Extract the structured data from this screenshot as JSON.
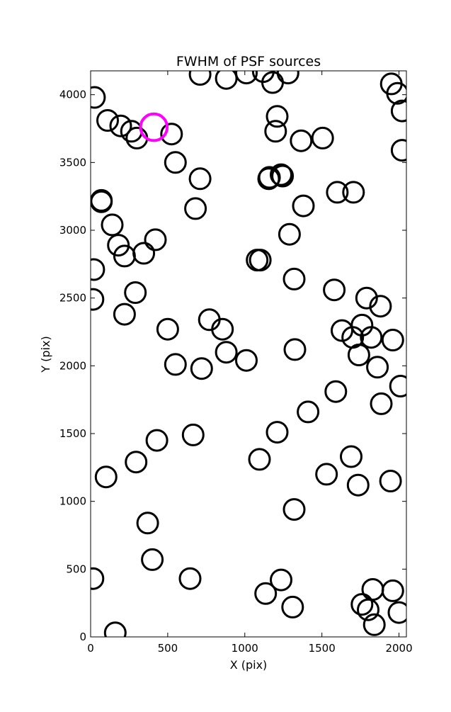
{
  "chart_data": {
    "type": "scatter",
    "title": "FWHM of PSF sources",
    "xlabel": "X (pix)",
    "ylabel": "Y (pix)",
    "xlim": [
      0,
      2048
    ],
    "ylim": [
      0,
      4176
    ],
    "xticks": [
      "0",
      "500",
      "1000",
      "1500",
      "2000"
    ],
    "yticks": [
      "0",
      "500",
      "1000",
      "1500",
      "2000",
      "2500",
      "3000",
      "3500",
      "4000"
    ],
    "xtick_values": [
      0,
      500,
      1000,
      1500,
      2000
    ],
    "ytick_values": [
      0,
      500,
      1000,
      1500,
      2000,
      2500,
      3000,
      3500,
      4000
    ],
    "grid": false,
    "colors": {
      "normal": "#000000",
      "highlight": "#ff00ff"
    },
    "marker_fwhm_pix": 95,
    "series": [
      {
        "x": [
          25,
          110,
          195,
          265,
          300,
          525,
          550,
          710,
          680,
          70,
          70,
          140,
          180,
          220,
          345,
          420,
          20,
          15,
          290,
          220,
          500,
          770,
          855,
          550,
          720,
          880,
          1010,
          1080,
          1100,
          1160,
          1245,
          1210,
          1200,
          1365,
          1505,
          1155,
          1235,
          1380,
          1290,
          1320,
          1325,
          1580,
          1630,
          1600,
          1705,
          1790,
          1880,
          1760,
          1820,
          1700,
          1740,
          1860,
          1960,
          2010,
          1590,
          1885,
          1410,
          1210,
          1690,
          1530,
          1735,
          1945,
          1095,
          665,
          430,
          295,
          100,
          370,
          400,
          1320,
          15,
          645,
          1235,
          1135,
          1310,
          160,
          1830,
          1760,
          1800,
          1840,
          1960,
          2000,
          710,
          880,
          1010,
          1120,
          1180,
          1280,
          1950,
          1990,
          2020,
          2020
        ],
        "y": [
          3980,
          3810,
          3770,
          3730,
          3680,
          3710,
          3500,
          3380,
          3160,
          3220,
          3210,
          3040,
          2890,
          2810,
          2830,
          2930,
          2710,
          2490,
          2540,
          2380,
          2270,
          2340,
          2270,
          2010,
          1980,
          2100,
          2040,
          2780,
          2780,
          3390,
          3400,
          3840,
          3730,
          3660,
          3680,
          3380,
          3410,
          3180,
          2970,
          2640,
          2120,
          2560,
          2260,
          3280,
          3280,
          2500,
          2440,
          2300,
          2210,
          2210,
          2080,
          1990,
          2190,
          1850,
          1810,
          1720,
          1660,
          1510,
          1330,
          1200,
          1120,
          1150,
          1310,
          1490,
          1450,
          1290,
          1180,
          840,
          570,
          940,
          430,
          430,
          420,
          320,
          220,
          30,
          350,
          240,
          200,
          90,
          340,
          180,
          4150,
          4120,
          4160,
          4170,
          4090,
          4160,
          4080,
          4010,
          3880,
          3590
        ],
        "highlight_index": null
      },
      {
        "x": [
          410
        ],
        "y": [
          3760
        ],
        "highlighted": true
      }
    ]
  }
}
